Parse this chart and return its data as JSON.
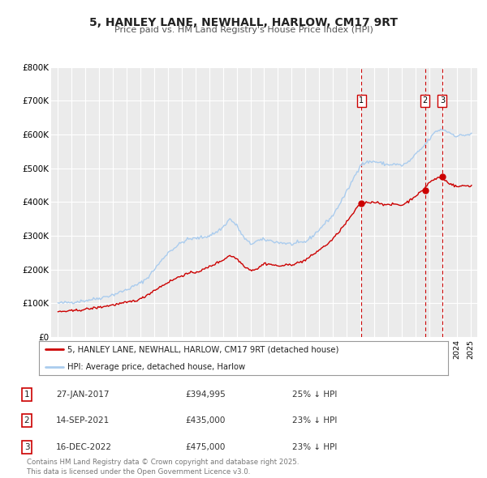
{
  "title": "5, HANLEY LANE, NEWHALL, HARLOW, CM17 9RT",
  "subtitle": "Price paid vs. HM Land Registry's House Price Index (HPI)",
  "background_color": "#ffffff",
  "plot_bg_color": "#ebebeb",
  "grid_color": "#ffffff",
  "hpi_color": "#aaccee",
  "price_color": "#cc0000",
  "ylim": [
    0,
    800000
  ],
  "yticks": [
    0,
    100000,
    200000,
    300000,
    400000,
    500000,
    600000,
    700000,
    800000
  ],
  "ytick_labels": [
    "£0",
    "£100K",
    "£200K",
    "£300K",
    "£400K",
    "£500K",
    "£600K",
    "£700K",
    "£800K"
  ],
  "sale_prices": [
    394995,
    435000,
    475000
  ],
  "sale_labels": [
    "1",
    "2",
    "3"
  ],
  "sale_date_nums": [
    2017.074,
    2021.706,
    2022.958
  ],
  "sale_info": [
    {
      "label": "1",
      "date": "27-JAN-2017",
      "price": "£394,995",
      "pct": "25% ↓ HPI"
    },
    {
      "label": "2",
      "date": "14-SEP-2021",
      "price": "£435,000",
      "pct": "23% ↓ HPI"
    },
    {
      "label": "3",
      "date": "16-DEC-2022",
      "price": "£475,000",
      "pct": "23% ↓ HPI"
    }
  ],
  "legend_label_price": "5, HANLEY LANE, NEWHALL, HARLOW, CM17 9RT (detached house)",
  "legend_label_hpi": "HPI: Average price, detached house, Harlow",
  "footer": "Contains HM Land Registry data © Crown copyright and database right 2025.\nThis data is licensed under the Open Government Licence v3.0.",
  "xlim_start": 1994.5,
  "xlim_end": 2025.5,
  "hpi_anchors": [
    [
      1995.0,
      100000
    ],
    [
      1996.0,
      103000
    ],
    [
      1997.0,
      108000
    ],
    [
      1998.0,
      115000
    ],
    [
      1999.0,
      125000
    ],
    [
      2000.0,
      140000
    ],
    [
      2001.0,
      160000
    ],
    [
      2001.5,
      175000
    ],
    [
      2002.0,
      200000
    ],
    [
      2002.5,
      225000
    ],
    [
      2003.0,
      250000
    ],
    [
      2003.5,
      265000
    ],
    [
      2004.0,
      280000
    ],
    [
      2004.5,
      290000
    ],
    [
      2005.0,
      292000
    ],
    [
      2005.5,
      295000
    ],
    [
      2006.0,
      300000
    ],
    [
      2006.5,
      310000
    ],
    [
      2007.0,
      325000
    ],
    [
      2007.5,
      350000
    ],
    [
      2008.0,
      330000
    ],
    [
      2008.5,
      295000
    ],
    [
      2009.0,
      275000
    ],
    [
      2009.5,
      285000
    ],
    [
      2010.0,
      288000
    ],
    [
      2010.5,
      285000
    ],
    [
      2011.0,
      280000
    ],
    [
      2011.5,
      278000
    ],
    [
      2012.0,
      275000
    ],
    [
      2012.5,
      278000
    ],
    [
      2013.0,
      282000
    ],
    [
      2013.5,
      298000
    ],
    [
      2014.0,
      318000
    ],
    [
      2014.5,
      340000
    ],
    [
      2015.0,
      360000
    ],
    [
      2015.5,
      395000
    ],
    [
      2016.0,
      430000
    ],
    [
      2016.5,
      470000
    ],
    [
      2017.0,
      510000
    ],
    [
      2017.5,
      518000
    ],
    [
      2018.0,
      520000
    ],
    [
      2018.5,
      515000
    ],
    [
      2019.0,
      510000
    ],
    [
      2019.5,
      512000
    ],
    [
      2020.0,
      508000
    ],
    [
      2020.5,
      518000
    ],
    [
      2021.0,
      540000
    ],
    [
      2021.5,
      560000
    ],
    [
      2022.0,
      585000
    ],
    [
      2022.5,
      610000
    ],
    [
      2023.0,
      615000
    ],
    [
      2023.5,
      605000
    ],
    [
      2024.0,
      595000
    ],
    [
      2024.5,
      598000
    ],
    [
      2025.0,
      600000
    ]
  ],
  "price_anchors": [
    [
      1995.0,
      75000
    ],
    [
      1996.0,
      77000
    ],
    [
      1997.0,
      82000
    ],
    [
      1998.0,
      88000
    ],
    [
      1999.0,
      95000
    ],
    [
      2000.0,
      102000
    ],
    [
      2001.0,
      112000
    ],
    [
      2002.0,
      138000
    ],
    [
      2003.0,
      162000
    ],
    [
      2004.0,
      182000
    ],
    [
      2004.5,
      188000
    ],
    [
      2005.0,
      192000
    ],
    [
      2005.5,
      198000
    ],
    [
      2006.0,
      208000
    ],
    [
      2007.0,
      228000
    ],
    [
      2007.5,
      242000
    ],
    [
      2008.0,
      232000
    ],
    [
      2008.5,
      212000
    ],
    [
      2009.0,
      198000
    ],
    [
      2009.5,
      202000
    ],
    [
      2010.0,
      218000
    ],
    [
      2010.5,
      215000
    ],
    [
      2011.0,
      210000
    ],
    [
      2011.5,
      212000
    ],
    [
      2012.0,
      215000
    ],
    [
      2012.5,
      220000
    ],
    [
      2013.0,
      228000
    ],
    [
      2013.5,
      242000
    ],
    [
      2014.0,
      258000
    ],
    [
      2014.5,
      272000
    ],
    [
      2015.0,
      290000
    ],
    [
      2015.5,
      315000
    ],
    [
      2016.0,
      340000
    ],
    [
      2016.5,
      368000
    ],
    [
      2017.0,
      395000
    ],
    [
      2017.3,
      398000
    ],
    [
      2018.0,
      400000
    ],
    [
      2018.5,
      396000
    ],
    [
      2019.0,
      390000
    ],
    [
      2019.5,
      394000
    ],
    [
      2020.0,
      390000
    ],
    [
      2020.5,
      402000
    ],
    [
      2021.0,
      418000
    ],
    [
      2021.5,
      432000
    ],
    [
      2022.0,
      458000
    ],
    [
      2022.7,
      473000
    ],
    [
      2023.0,
      468000
    ],
    [
      2023.5,
      455000
    ],
    [
      2024.0,
      445000
    ],
    [
      2024.5,
      448000
    ],
    [
      2025.0,
      448000
    ]
  ]
}
